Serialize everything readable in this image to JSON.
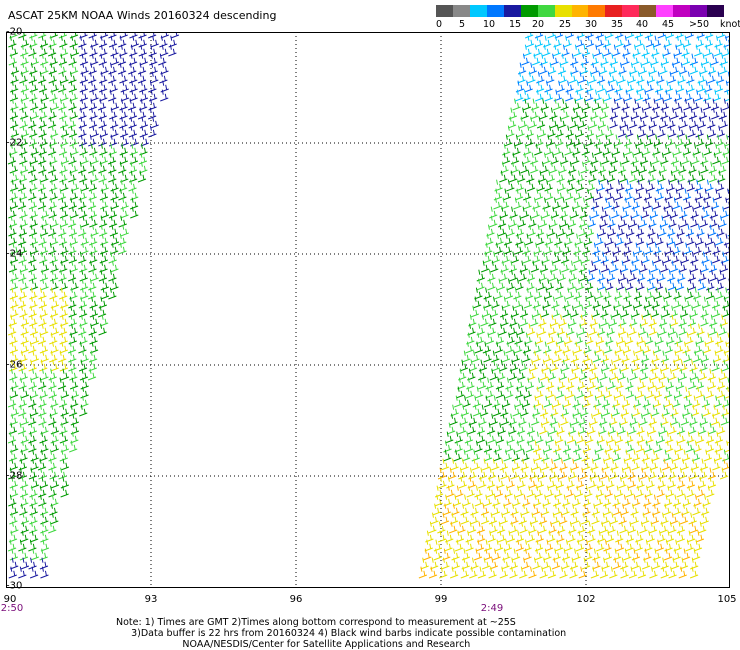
{
  "title": "ASCAT 25KM NOAA Winds 20160324 descending",
  "legend": {
    "colors": [
      "#555555",
      "#888888",
      "#00c8ff",
      "#0078ff",
      "#1a1aa0",
      "#009a00",
      "#40d840",
      "#e8e000",
      "#ffb400",
      "#ff7a00",
      "#e82020",
      "#ff2a5a",
      "#8a5a2a",
      "#ff40ff",
      "#c000c0",
      "#7a00b0",
      "#2a0050"
    ],
    "ticks": [
      "0",
      "5",
      "10",
      "15",
      "20",
      "25",
      "30",
      "35",
      "40",
      "45",
      ">50"
    ],
    "unit": "knots"
  },
  "map": {
    "lon_range": [
      90,
      105
    ],
    "lat_range": [
      -30,
      -20
    ],
    "lon_ticks": [
      "90",
      "93",
      "96",
      "99",
      "102",
      "105"
    ],
    "lat_ticks": [
      "-20",
      "-22",
      "-24",
      "-26",
      "-28",
      "-30"
    ],
    "grid": true,
    "swaths": [
      {
        "name": "west",
        "time": "2:50"
      },
      {
        "name": "east",
        "time": "2:49"
      }
    ]
  },
  "notes": {
    "line1": "Note: 1) Times are GMT 2)Times along bottom correspond to measurement at ~25S",
    "line2": "     3)Data buffer is 22 hrs from 20160324 4) Black wind barbs indicate possible contamination",
    "line3": "                      NOAA/NESDIS/Center for Satellite Applications and Research"
  }
}
